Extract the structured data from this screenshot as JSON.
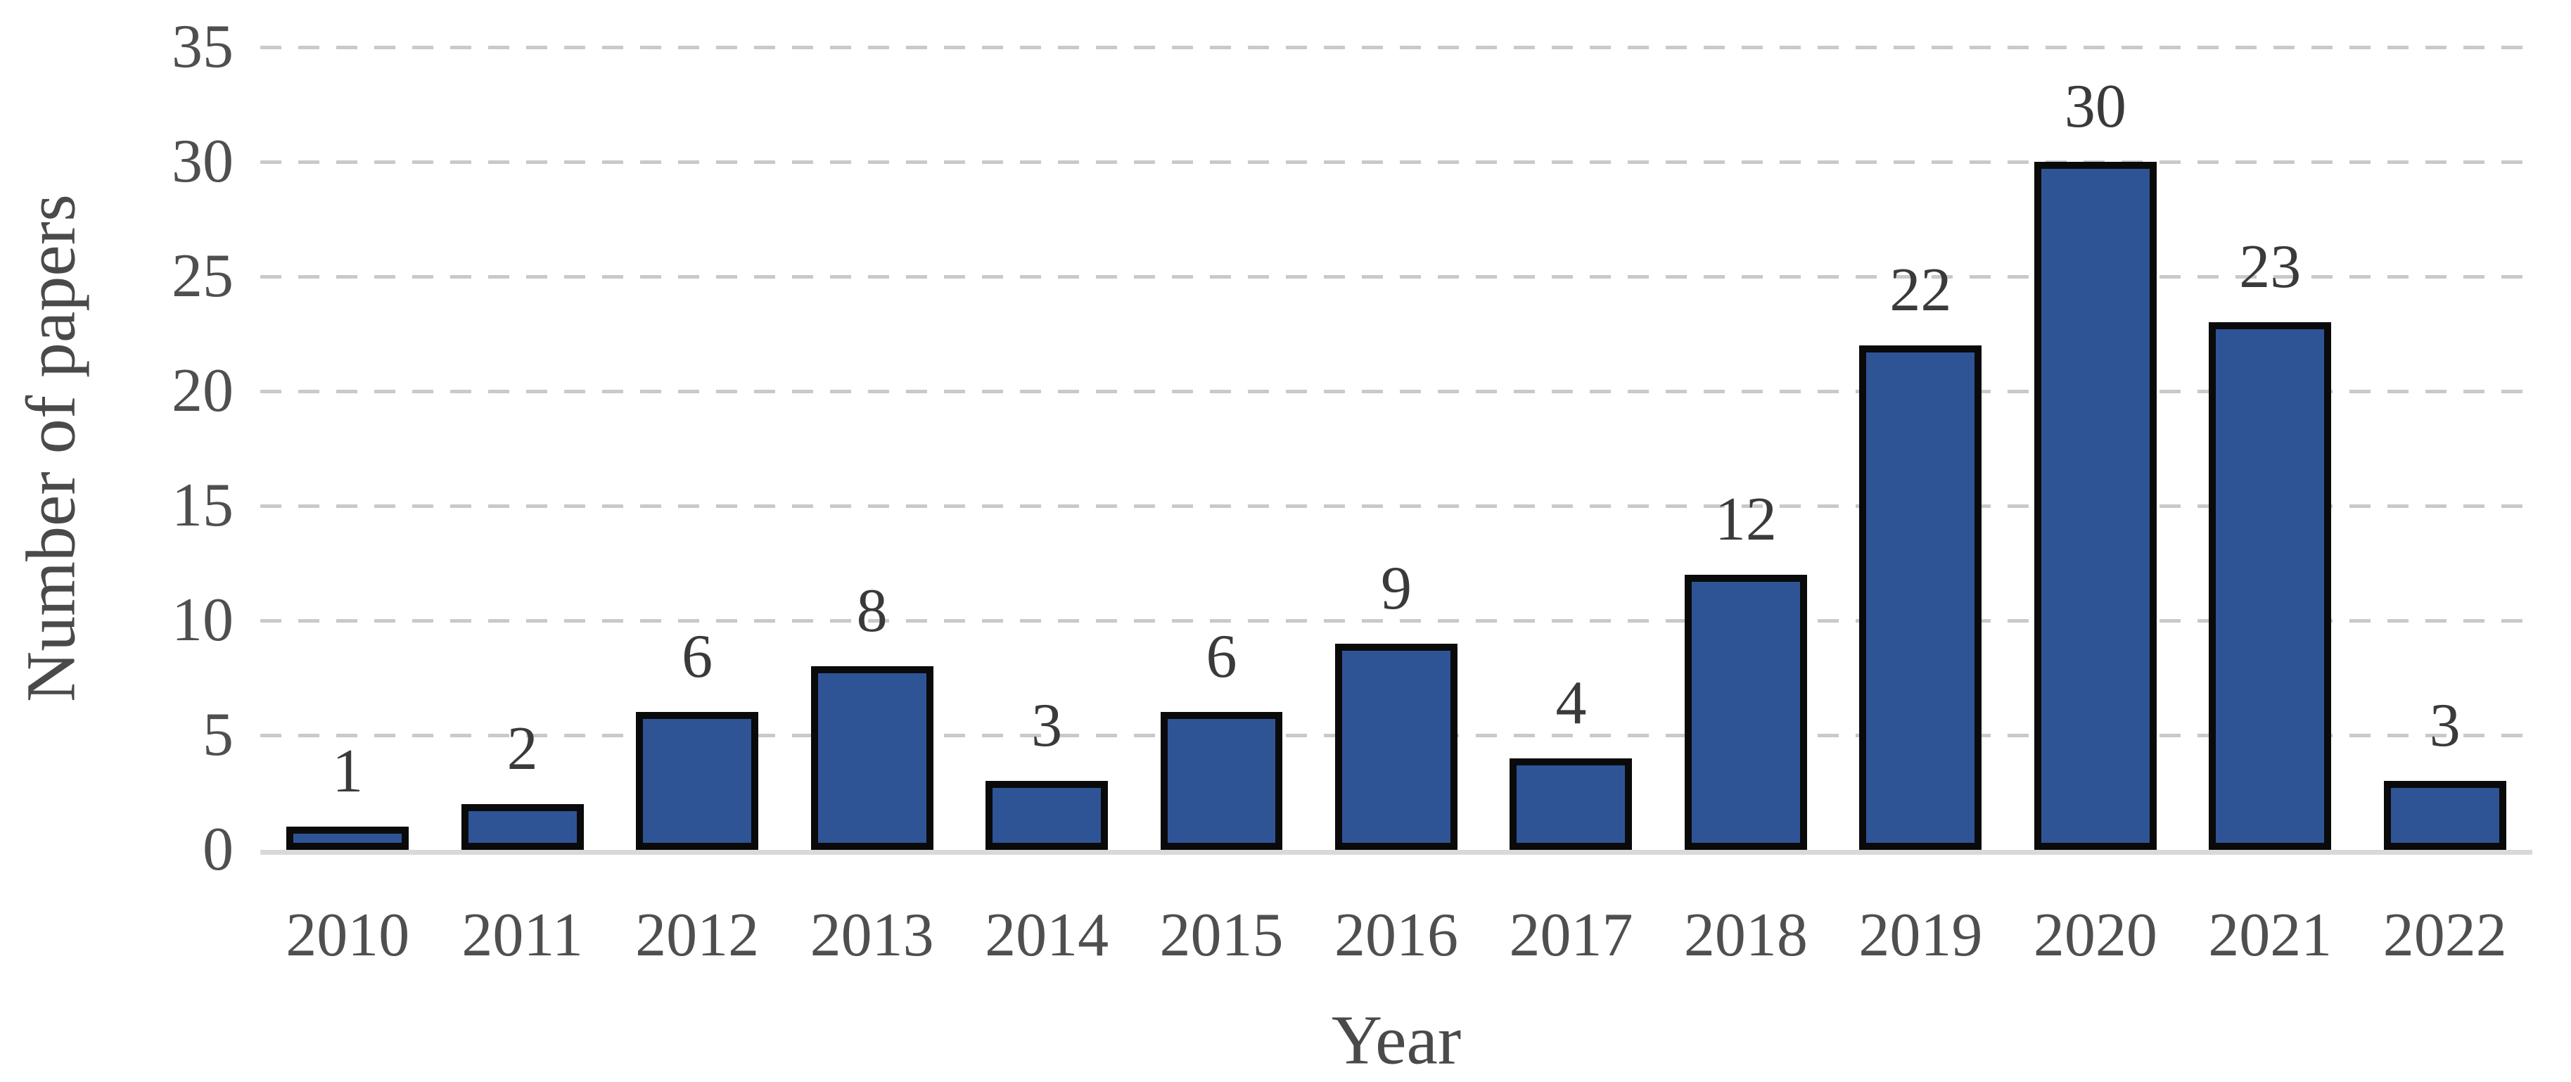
{
  "chart_data": {
    "type": "bar",
    "title": "",
    "xlabel": "Year",
    "ylabel": "Number of papers",
    "categories": [
      "2010",
      "2011",
      "2012",
      "2013",
      "2014",
      "2015",
      "2016",
      "2017",
      "2018",
      "2019",
      "2020",
      "2021",
      "2022"
    ],
    "values": [
      1,
      2,
      6,
      8,
      3,
      6,
      9,
      4,
      12,
      22,
      30,
      23,
      3
    ],
    "ylim": [
      0,
      35
    ],
    "yticks": [
      0,
      5,
      10,
      15,
      20,
      25,
      30,
      35
    ],
    "grid": "horizontal-dashed",
    "legend_position": "none",
    "colors": {
      "bar_fill": "#2f5496",
      "bar_border": "#0a0a0a",
      "gridline": "#c9c9c9",
      "axis_line": "#d9d9d9",
      "tick_label": "#4f4f4f",
      "data_label": "#3a3a3a",
      "axis_title": "#4a4a4a",
      "background": "#ffffff"
    }
  }
}
